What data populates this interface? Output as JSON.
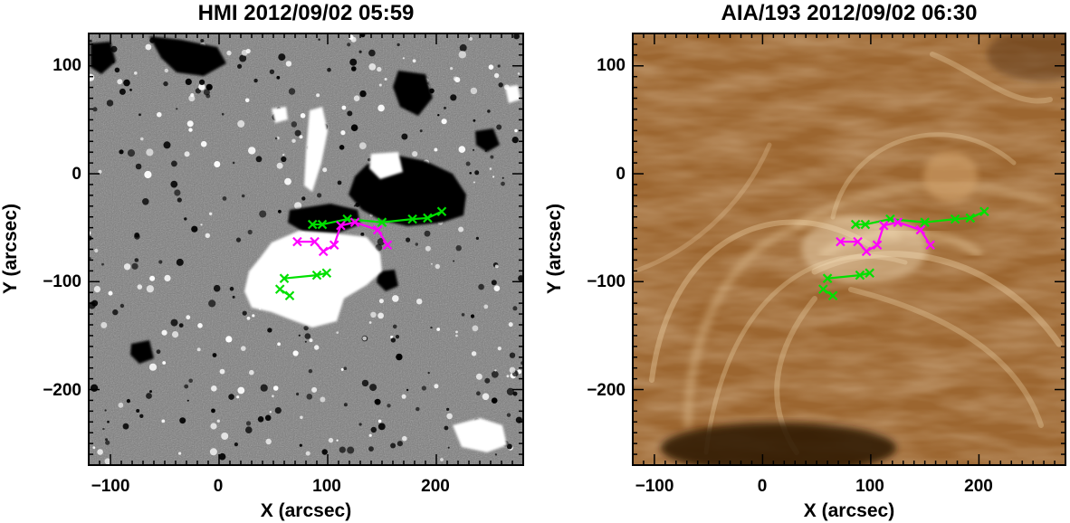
{
  "panels": [
    {
      "id": "hmi",
      "title": "HMI 2012/09/02 05:59",
      "image_kind": "magnetogram",
      "colors": {
        "background": "#7f7f7f",
        "positive": "#ffffff",
        "negative": "#000000"
      },
      "x_label": "X (arcsec)",
      "y_label": "Y (arcsec)",
      "x_range": [
        -120,
        280
      ],
      "y_range": [
        -270,
        130
      ],
      "x_ticks": [
        -100,
        0,
        100,
        200
      ],
      "y_ticks": [
        100,
        0,
        -100,
        -200
      ],
      "x_tick_labels": [
        "−100",
        "0",
        "100",
        "200"
      ],
      "y_tick_labels": [
        "100",
        "0",
        "−100",
        "−200"
      ]
    },
    {
      "id": "aia",
      "title": "AIA/193 2012/09/02 06:30",
      "image_kind": "euv-coronal-loops",
      "colors": {
        "background": "#a06a34",
        "loop": "#f2d6a8",
        "dark": "#2a1606"
      },
      "x_label": "X (arcsec)",
      "y_label": "Y (arcsec)",
      "x_range": [
        -120,
        280
      ],
      "y_range": [
        -270,
        130
      ],
      "x_ticks": [
        -100,
        0,
        100,
        200
      ],
      "y_ticks": [
        100,
        0,
        -100,
        -200
      ],
      "x_tick_labels": [
        "−100",
        "0",
        "100",
        "200"
      ],
      "y_tick_labels": [
        "100",
        "0",
        "−100",
        "−200"
      ]
    }
  ],
  "overlay_tracks": [
    {
      "color": "#00e000",
      "points": [
        [
          86,
          -47
        ],
        [
          95,
          -47
        ],
        [
          118,
          -42
        ],
        [
          150,
          -45
        ],
        [
          178,
          -42
        ],
        [
          192,
          -41
        ],
        [
          205,
          -35
        ]
      ]
    },
    {
      "color": "#ff00ff",
      "points": [
        [
          72,
          -63
        ],
        [
          88,
          -63
        ],
        [
          96,
          -72
        ],
        [
          106,
          -66
        ],
        [
          112,
          -48
        ],
        [
          125,
          -45
        ],
        [
          146,
          -52
        ],
        [
          155,
          -66
        ]
      ]
    },
    {
      "color": "#00e000",
      "points": [
        [
          60,
          -97
        ],
        [
          90,
          -94
        ],
        [
          99,
          -92
        ]
      ]
    },
    {
      "color": "#00e000",
      "points": [
        [
          56,
          -107
        ],
        [
          65,
          -113
        ]
      ]
    }
  ]
}
